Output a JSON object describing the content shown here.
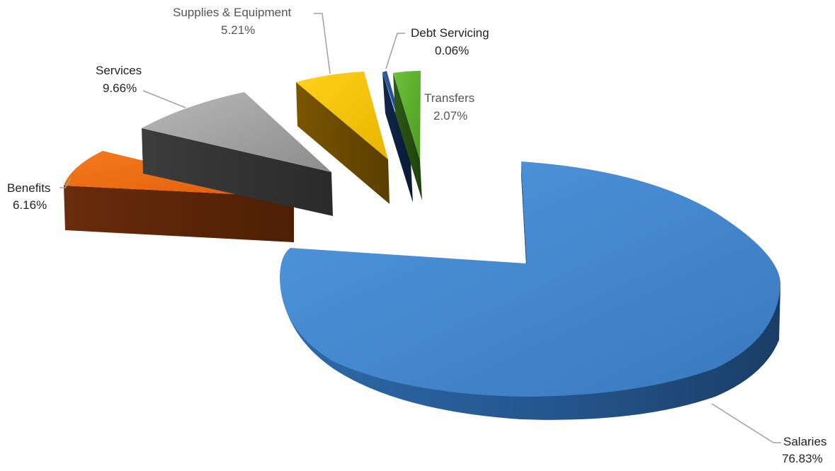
{
  "chart_data": {
    "type": "pie",
    "title": "",
    "slices": [
      {
        "label": "Salaries",
        "value_label": "76.83%",
        "value": 76.83,
        "color": "#4a90d9",
        "label_color": "#222222"
      },
      {
        "label": "Benefits",
        "value_label": "6.16%",
        "value": 6.16,
        "color": "#f36d10",
        "label_color": "#222222"
      },
      {
        "label": "Services",
        "value_label": "9.66%",
        "value": 9.66,
        "color": "#9a9a9a",
        "label_color": "#222222"
      },
      {
        "label": "Supplies & Equipment",
        "value_label": "5.21%",
        "value": 5.21,
        "color": "#f3c000",
        "label_color": "#555555"
      },
      {
        "label": "Debt Servicing",
        "value_label": "0.06%",
        "value": 0.06,
        "color": "#1a3f7a",
        "label_color": "#222222"
      },
      {
        "label": "Transfers",
        "value_label": "2.07%",
        "value": 2.07,
        "color": "#5fac2e",
        "label_color": "#555555"
      }
    ],
    "style": "3d-exploded",
    "legend": "none"
  }
}
